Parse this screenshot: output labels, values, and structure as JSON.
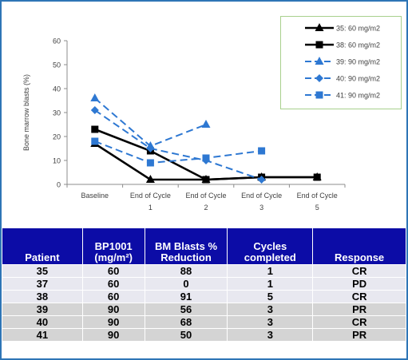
{
  "chart_data": {
    "type": "line",
    "title": "",
    "ylabel": "Bone marrow blasts (%)",
    "xlabel": "",
    "ylim": [
      0,
      60
    ],
    "yticks": [
      0,
      10,
      20,
      30,
      40,
      50,
      60
    ],
    "categories": [
      [
        "Baseline"
      ],
      [
        "End of Cycle",
        "1"
      ],
      [
        "End of Cycle",
        "2"
      ],
      [
        "End of Cycle",
        "3"
      ],
      [
        "End of Cycle",
        "5"
      ]
    ],
    "legend_position": "top-right",
    "series": [
      {
        "name": "35: 60 mg/m2",
        "color": "#000000",
        "marker": "triangle",
        "dashed": false,
        "values": [
          17,
          2,
          2,
          3,
          3
        ]
      },
      {
        "name": "38: 60 mg/m2",
        "color": "#000000",
        "marker": "square",
        "dashed": false,
        "values": [
          23,
          14,
          2,
          3,
          3
        ]
      },
      {
        "name": "39: 90 mg/m2",
        "color": "#2e78d2",
        "marker": "triangle",
        "dashed": true,
        "values": [
          36,
          16,
          25,
          null,
          null
        ]
      },
      {
        "name": "40: 90 mg/m2",
        "color": "#2e78d2",
        "marker": "diamond",
        "dashed": true,
        "values": [
          31,
          15,
          10,
          2,
          null
        ]
      },
      {
        "name": "41: 90 mg/m2",
        "color": "#2e78d2",
        "marker": "square",
        "dashed": true,
        "values": [
          18,
          9,
          11,
          14,
          null
        ]
      }
    ]
  },
  "table": {
    "headers": [
      [
        "Patient"
      ],
      [
        "BP1001",
        "(mg/m²)"
      ],
      [
        "BM Blasts %",
        "Reduction"
      ],
      [
        "Cycles",
        "completed"
      ],
      [
        "Response"
      ]
    ],
    "rows": [
      [
        "35",
        "60",
        "88",
        "1",
        "CR"
      ],
      [
        "37",
        "60",
        "0",
        "1",
        "PD"
      ],
      [
        "38",
        "60",
        "91",
        "5",
        "CR"
      ],
      [
        "39",
        "90",
        "56",
        "3",
        "PR"
      ],
      [
        "40",
        "90",
        "68",
        "3",
        "CR"
      ],
      [
        "41",
        "90",
        "50",
        "3",
        "PR"
      ]
    ]
  }
}
